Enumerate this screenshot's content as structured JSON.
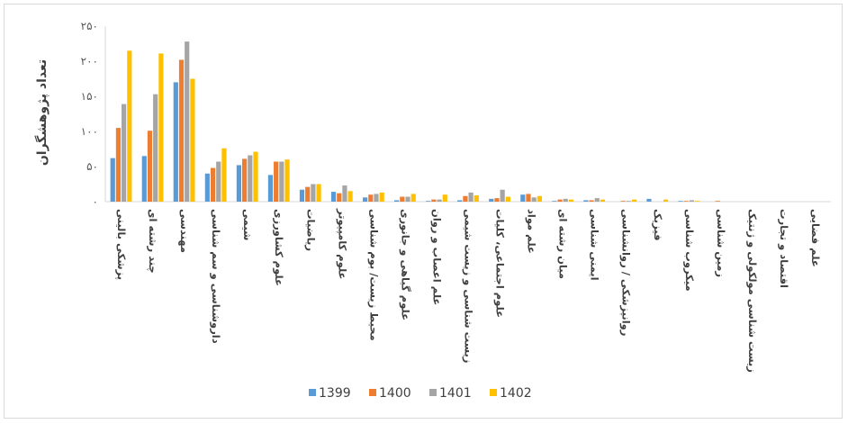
{
  "chart_data": {
    "type": "bar",
    "ylabel": "تعداد پژوهشگران",
    "ylim": [
      0,
      250
    ],
    "yticks": [
      "۰",
      "۵۰",
      "۱۰۰",
      "۱۵۰",
      "۲۰۰",
      "۲۵۰"
    ],
    "legend_position": "bottom",
    "grid": false,
    "categories": [
      "پزشکی بالینی",
      "چند رشته ای",
      "مهندسی",
      "داروشناسی و سم شناسی",
      "شیمی",
      "علوم کشاورزی",
      "ریاضیات",
      "علوم کامپیوتر",
      "محیط زیست/ بوم شناسی",
      "علوم گیاهی و جانوری",
      "علم اعصاب و روان",
      "زیست شناسی و زیست شیمی",
      "علوم اجتماعی، کلیات",
      "علم مواد",
      "میان رشته ای",
      "ایمنی شناسی",
      "روانپزشکی / روانشناسی",
      "فیزیک",
      "میکروب شناسی",
      "زمین شناسی",
      "زیست شناسی مولکولی و ژنتیک",
      "اقتصاد و تجارت",
      "علم فضایی"
    ],
    "series": [
      {
        "name": "1399",
        "color": "#5b9bd5",
        "values": [
          62,
          65,
          170,
          40,
          52,
          38,
          17,
          14,
          6,
          2,
          1,
          2,
          4,
          10,
          1,
          2,
          0,
          4,
          1,
          0,
          0,
          0,
          0
        ]
      },
      {
        "name": "1400",
        "color": "#ed7d31",
        "values": [
          105,
          101,
          202,
          48,
          61,
          57,
          21,
          12,
          10,
          7,
          3,
          8,
          5,
          11,
          3,
          2,
          1,
          0,
          1,
          1,
          0,
          0,
          0
        ]
      },
      {
        "name": "1401",
        "color": "#a5a5a5",
        "values": [
          139,
          153,
          228,
          57,
          66,
          57,
          25,
          23,
          11,
          7,
          3,
          13,
          17,
          6,
          4,
          5,
          1,
          0,
          2,
          0,
          0,
          0,
          0
        ]
      },
      {
        "name": "1402",
        "color": "#ffc000",
        "values": [
          215,
          211,
          175,
          76,
          71,
          60,
          25,
          15,
          13,
          11,
          10,
          9,
          7,
          8,
          3,
          3,
          3,
          3,
          1,
          0,
          0,
          0,
          0
        ]
      }
    ]
  }
}
